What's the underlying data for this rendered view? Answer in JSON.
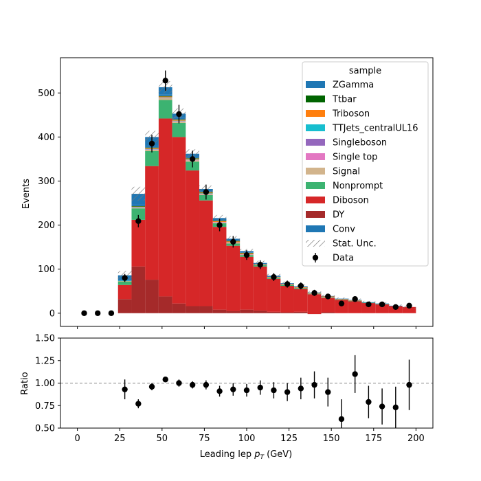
{
  "chart_data": [
    {
      "type": "bar",
      "subtype": "stacked-histogram",
      "ylabel": "Events",
      "xlim": [
        -10,
        210
      ],
      "ylim": [
        -30,
        580
      ],
      "yticks": [
        0,
        100,
        200,
        300,
        400,
        500
      ],
      "bin_edges": [
        0,
        8,
        16,
        24,
        32,
        40,
        48,
        56,
        64,
        72,
        80,
        88,
        96,
        104,
        112,
        120,
        128,
        136,
        144,
        152,
        160,
        168,
        176,
        184,
        192,
        200
      ],
      "stack_order_bottom_to_top": [
        "DY",
        "Diboson",
        "Nonprompt",
        "Signal",
        "Single top",
        "Singleboson",
        "TTJets_centralUL16",
        "Triboson",
        "Ttbar",
        "ZGamma",
        "Conv"
      ],
      "series": [
        {
          "name": "DY",
          "color": "#a52a2a",
          "values": [
            0,
            0,
            0,
            32,
            106,
            76,
            38,
            22,
            16,
            16,
            8,
            5,
            8,
            6,
            3,
            2,
            3,
            -2,
            2,
            0,
            0,
            0,
            0,
            0,
            0
          ]
        },
        {
          "name": "Diboson",
          "color": "#d62728",
          "values": [
            0,
            0,
            0,
            32,
            106,
            258,
            404,
            378,
            308,
            240,
            188,
            148,
            120,
            100,
            75,
            60,
            52,
            45,
            33,
            30,
            27,
            23,
            20,
            16,
            14
          ]
        },
        {
          "name": "Nonprompt",
          "color": "#3cb371",
          "values": [
            0,
            0,
            0,
            8,
            26,
            34,
            42,
            32,
            20,
            12,
            8,
            5,
            4,
            3,
            2,
            2,
            2,
            1,
            1,
            1,
            1,
            1,
            1,
            0,
            0
          ]
        },
        {
          "name": "Signal",
          "color": "#d2b48c",
          "values": [
            0,
            0,
            0,
            1,
            1,
            3,
            4,
            3,
            3,
            2,
            2,
            2,
            1,
            1,
            1,
            1,
            1,
            1,
            1,
            0,
            0,
            0,
            0,
            0,
            0
          ]
        },
        {
          "name": "Single top",
          "color": "#e377c2",
          "values": [
            0,
            0,
            0,
            0,
            1,
            1,
            1,
            1,
            1,
            1,
            1,
            1,
            1,
            0,
            0,
            0,
            0,
            0,
            0,
            0,
            0,
            0,
            0,
            0,
            0
          ]
        },
        {
          "name": "Singleboson",
          "color": "#9467bd",
          "values": [
            0,
            0,
            0,
            0,
            0,
            0,
            0,
            0,
            0,
            0,
            0,
            0,
            0,
            0,
            0,
            0,
            0,
            0,
            0,
            0,
            0,
            0,
            0,
            0,
            0
          ]
        },
        {
          "name": "TTJets_centralUL16",
          "color": "#17becf",
          "values": [
            0,
            0,
            0,
            1,
            1,
            1,
            1,
            1,
            1,
            1,
            0,
            0,
            0,
            0,
            0,
            0,
            0,
            0,
            0,
            0,
            0,
            0,
            0,
            0,
            0
          ]
        },
        {
          "name": "Triboson",
          "color": "#ff7f0e",
          "values": [
            0,
            0,
            0,
            0,
            1,
            2,
            2,
            2,
            2,
            2,
            2,
            2,
            2,
            1,
            1,
            1,
            1,
            1,
            1,
            1,
            1,
            0,
            0,
            0,
            0
          ]
        },
        {
          "name": "Ttbar",
          "color": "#006400",
          "values": [
            0,
            0,
            0,
            0,
            1,
            1,
            1,
            1,
            1,
            1,
            1,
            1,
            1,
            0,
            0,
            0,
            0,
            0,
            0,
            0,
            0,
            0,
            0,
            0,
            0
          ]
        },
        {
          "name": "ZGamma",
          "color": "#1f77b4",
          "values": [
            0,
            0,
            0,
            2,
            4,
            4,
            4,
            3,
            2,
            2,
            1,
            1,
            1,
            1,
            1,
            0,
            0,
            0,
            0,
            0,
            0,
            0,
            0,
            0,
            0
          ]
        },
        {
          "name": "Conv",
          "color": "#1f77b4",
          "values": [
            0,
            0,
            0,
            10,
            24,
            20,
            16,
            10,
            8,
            5,
            5,
            4,
            3,
            2,
            2,
            2,
            2,
            1,
            1,
            1,
            1,
            1,
            1,
            1,
            0
          ]
        }
      ],
      "stat_unc": [
        0,
        0,
        0,
        10,
        16,
        14,
        14,
        12,
        10,
        8,
        7,
        6,
        5,
        5,
        4,
        4,
        4,
        3,
        3,
        3,
        3,
        3,
        3,
        3,
        3
      ],
      "data": {
        "name": "Data",
        "x": [
          4,
          12,
          20,
          28,
          36,
          44,
          52,
          60,
          68,
          76,
          84,
          92,
          100,
          108,
          116,
          124,
          132,
          140,
          148,
          156,
          164,
          172,
          180,
          188,
          196
        ],
        "y": [
          0,
          0,
          0,
          80,
          209,
          385,
          528,
          452,
          350,
          275,
          200,
          162,
          132,
          110,
          82,
          66,
          62,
          46,
          38,
          22,
          32,
          20,
          20,
          14,
          17
        ],
        "yerr": [
          0,
          0,
          0,
          9,
          14,
          20,
          23,
          21,
          19,
          17,
          14,
          13,
          11,
          10,
          9,
          8,
          8,
          7,
          6,
          5,
          6,
          4,
          4,
          4,
          4
        ]
      },
      "legend": {
        "title": "sample",
        "placement": "upper right",
        "entries": [
          {
            "label": "ZGamma",
            "color": "#1f77b4",
            "kind": "patch"
          },
          {
            "label": "Ttbar",
            "color": "#006400",
            "kind": "patch"
          },
          {
            "label": "Triboson",
            "color": "#ff7f0e",
            "kind": "patch"
          },
          {
            "label": "TTJets_centralUL16",
            "color": "#17becf",
            "kind": "patch"
          },
          {
            "label": "Singleboson",
            "color": "#9467bd",
            "kind": "patch"
          },
          {
            "label": "Single top",
            "color": "#e377c2",
            "kind": "patch"
          },
          {
            "label": "Signal",
            "color": "#d2b48c",
            "kind": "patch"
          },
          {
            "label": "Nonprompt",
            "color": "#3cb371",
            "kind": "patch"
          },
          {
            "label": "Diboson",
            "color": "#d62728",
            "kind": "patch"
          },
          {
            "label": "DY",
            "color": "#a52a2a",
            "kind": "patch"
          },
          {
            "label": "Conv",
            "color": "#1f77b4",
            "kind": "patch"
          },
          {
            "label": "Stat. Unc.",
            "color": "#888888",
            "kind": "hatch"
          },
          {
            "label": "Data",
            "color": "#000000",
            "kind": "marker"
          }
        ]
      }
    },
    {
      "type": "scatter",
      "subtype": "ratio",
      "xlabel": "Leading lep p_T (GeV)",
      "xlabel_main": "Leading lep ",
      "xlabel_math": "p",
      "xlabel_sub": "T",
      "xlabel_units": " (GeV)",
      "ylabel": "Ratio",
      "xlim": [
        -10,
        210
      ],
      "ylim": [
        0.5,
        1.5
      ],
      "xticks": [
        0,
        25,
        50,
        75,
        100,
        125,
        150,
        175,
        200
      ],
      "yticks": [
        0.5,
        0.75,
        1.0,
        1.25,
        1.5
      ],
      "ytick_labels": [
        "0.50",
        "0.75",
        "1.00",
        "1.25",
        "1.50"
      ],
      "reference_line": 1.0,
      "x": [
        28,
        36,
        44,
        52,
        60,
        68,
        76,
        84,
        92,
        100,
        108,
        116,
        124,
        132,
        140,
        148,
        156,
        164,
        172,
        180,
        188,
        196
      ],
      "y": [
        0.93,
        0.77,
        0.96,
        1.04,
        1.0,
        0.98,
        0.98,
        0.91,
        0.93,
        0.92,
        0.95,
        0.92,
        0.9,
        0.94,
        0.98,
        0.9,
        0.6,
        1.1,
        0.79,
        0.74,
        0.73,
        0.98
      ],
      "yerr": [
        0.11,
        0.05,
        0.04,
        0.03,
        0.04,
        0.04,
        0.05,
        0.06,
        0.07,
        0.07,
        0.08,
        0.09,
        0.1,
        0.12,
        0.15,
        0.16,
        0.22,
        0.21,
        0.18,
        0.2,
        0.23,
        0.28
      ]
    }
  ]
}
